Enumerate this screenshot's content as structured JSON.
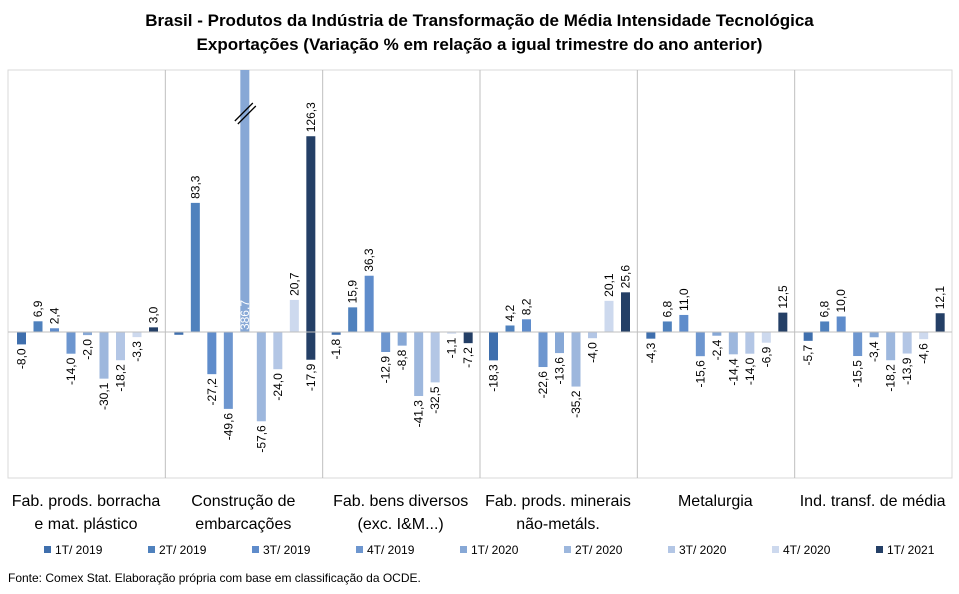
{
  "title_line1": "Brasil - Produtos da Indústria de Transformação de Média Intensidade Tecnológica",
  "title_line2": "Exportações (Variação % em relação a igual trimestre do ano anterior)",
  "source": "Fonte: Comex Stat. Elaboração própria com base em classificação da OCDE.",
  "chart_data": {
    "type": "bar",
    "categories": [
      [
        "Fab. prods. borracha",
        "e mat. plástico"
      ],
      [
        "Construção de",
        "embarcações"
      ],
      [
        "Fab. bens diversos",
        "(exc. I&M...)"
      ],
      [
        "Fab. prods. minerais",
        "não-metáls."
      ],
      [
        "Metalurgia",
        ""
      ],
      [
        "Ind. transf. de média",
        ""
      ]
    ],
    "series": [
      {
        "name": "1T/ 2019",
        "color": "#3f6fad",
        "values": [
          -8.0,
          -1.8,
          -1.8,
          -18.3,
          -4.3,
          -5.7
        ],
        "labels": [
          "-8,0",
          "",
          "-1,8",
          "-18,3",
          "-4,3",
          "-5,7"
        ]
      },
      {
        "name": "2T/ 2019",
        "color": "#4f81bd",
        "values": [
          6.9,
          83.3,
          15.9,
          4.2,
          6.8,
          6.8
        ],
        "labels": [
          "6,9",
          "83,3",
          "15,9",
          "4,2",
          "6,8",
          "6,8"
        ]
      },
      {
        "name": "3T/ 2019",
        "color": "#5f8ccb",
        "values": [
          2.4,
          -27.2,
          36.3,
          8.2,
          11.0,
          10.0
        ],
        "labels": [
          "2,4",
          "-27,2",
          "36,3",
          "8,2",
          "11,0",
          "10,0"
        ]
      },
      {
        "name": "4T/ 2019",
        "color": "#6d96cf",
        "values": [
          -14.0,
          -49.6,
          -12.9,
          -22.6,
          -15.6,
          -15.5
        ],
        "labels": [
          "-14,0",
          "-49,6",
          "-12,9",
          "-22,6",
          "-15,6",
          "-15,5"
        ]
      },
      {
        "name": "1T/ 2020",
        "color": "#87a8d6",
        "values": [
          -2.0,
          386.7,
          -8.8,
          -13.6,
          -2.4,
          -3.4
        ],
        "labels": [
          "-2,0",
          "386,7",
          "-8,8",
          "-13,6",
          "-2,4",
          "-3,4"
        ]
      },
      {
        "name": "2T/ 2020",
        "color": "#9db7dd",
        "values": [
          -30.1,
          -57.6,
          -41.3,
          -35.2,
          -14.4,
          -18.2
        ],
        "labels": [
          "-30,1",
          "-57,6",
          "-41,3",
          "-35,2",
          "-14,4",
          "-18,2"
        ]
      },
      {
        "name": "3T/ 2020",
        "color": "#b3c6e5",
        "values": [
          -18.2,
          -24.0,
          -32.5,
          -4.0,
          -14.0,
          -13.9
        ],
        "labels": [
          "-18,2",
          "-24,0",
          "-32,5",
          "-4,0",
          "-14,0",
          "-13,9"
        ]
      },
      {
        "name": "4T/ 2020",
        "color": "#cdd9ee",
        "values": [
          -3.3,
          20.7,
          -1.1,
          20.1,
          -6.9,
          -4.6
        ],
        "labels": [
          "-3,3",
          "20,7",
          "-1,1",
          "20,1",
          "-6,9",
          "-4,6"
        ]
      },
      {
        "name": "1T/ 2021",
        "color": "#243f66",
        "values": [
          3.0,
          -17.9,
          -7.2,
          25.6,
          12.5,
          12.1
        ],
        "labels": [
          "3,0",
          "-17,9",
          "-7,2",
          "25,6",
          "12,5",
          "12,1"
        ]
      },
      {
        "name": "",
        "color": "#243f66",
        "values": [
          null,
          126.3,
          null,
          null,
          null,
          null
        ],
        "labels": [
          "",
          "126,3",
          "",
          "",
          "",
          ""
        ]
      }
    ],
    "ylim": [
      -80,
      115
    ],
    "axis_broken": true,
    "grid": false,
    "legend_position": "bottom"
  }
}
